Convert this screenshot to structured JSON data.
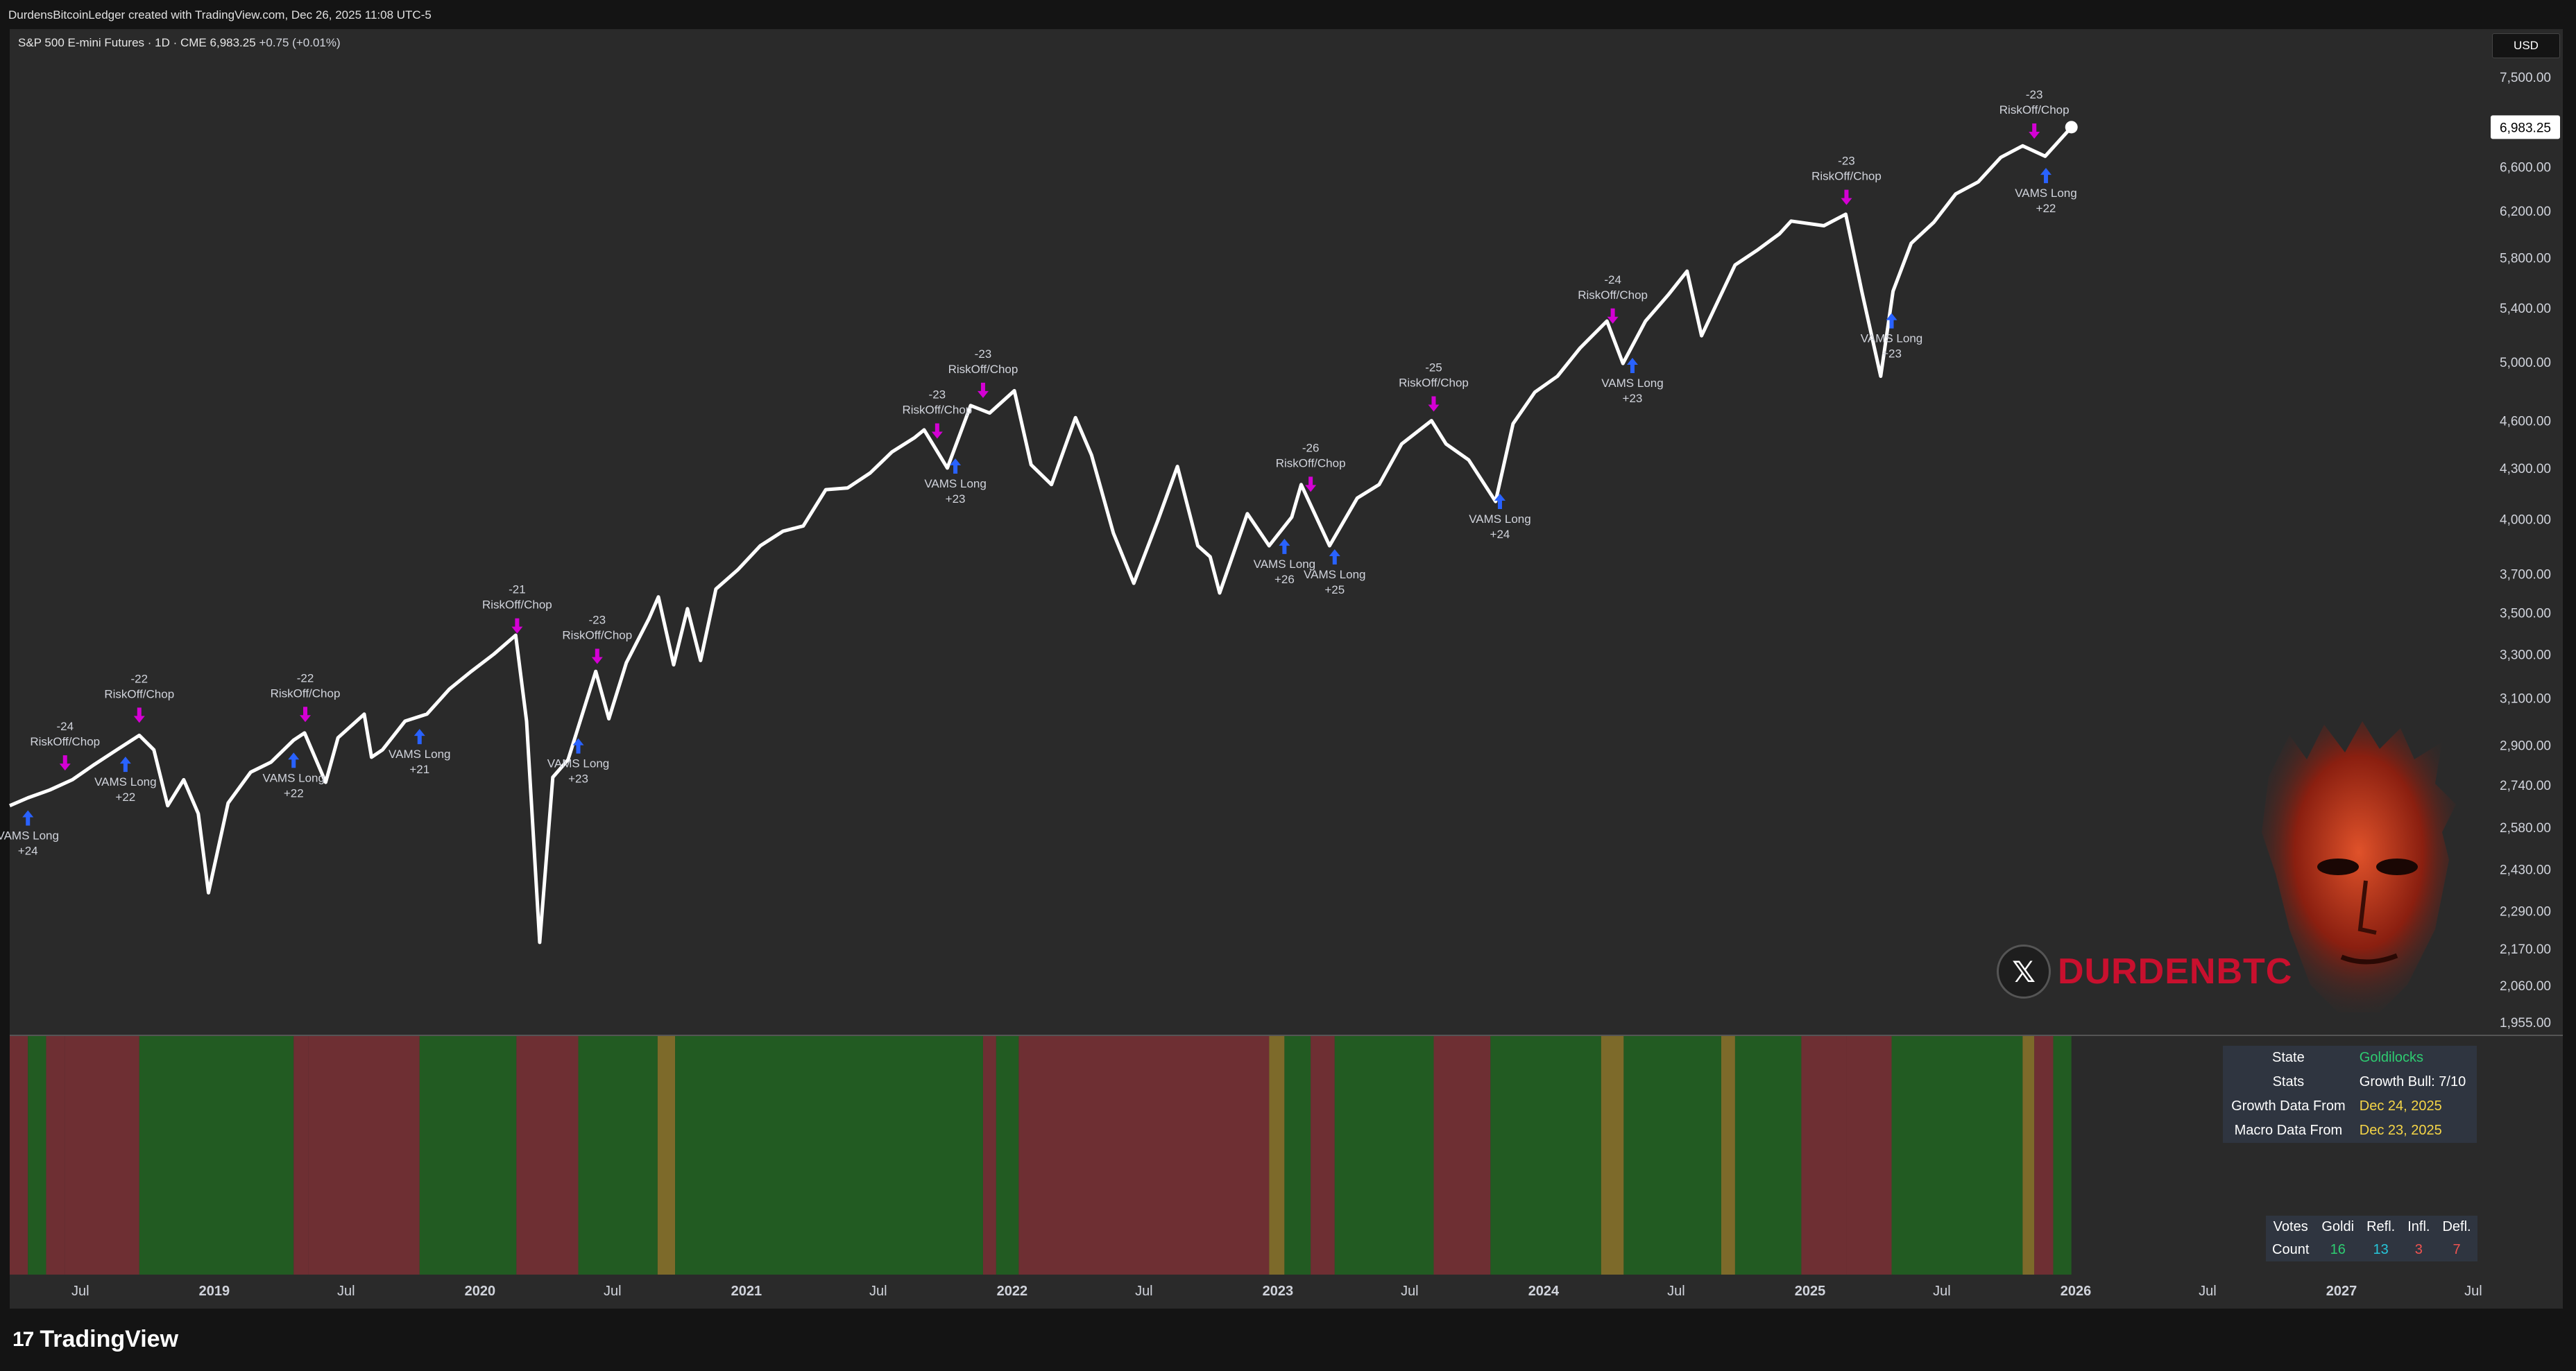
{
  "topbar": {
    "text": "DurdensBitcoinLedger created with TradingView.com, Dec 26, 2025 11:08 UTC-5"
  },
  "legend": {
    "symbol": "S&P 500 E-mini Futures · 1D · CME",
    "price": "6,983.25",
    "change": "+0.75 (+0.01%)"
  },
  "currency": "USD",
  "last_price_label": "6,983.25",
  "brand": {
    "x_icon": "x-logo-icon",
    "name": "DURDENBTC"
  },
  "footer": {
    "logo_mark": "17",
    "logo_text": "TradingView"
  },
  "info_table": {
    "rows": [
      {
        "key": "State",
        "value": "Goldilocks",
        "color": "#2ecc71"
      },
      {
        "key": "Stats",
        "value": "Growth Bull: 7/10",
        "color": "#ffffff"
      },
      {
        "key": "Growth Data From",
        "value": "Dec 24, 2025",
        "color": "#f5d547"
      },
      {
        "key": "Macro Data From",
        "value": "Dec 23, 2025",
        "color": "#f5d547"
      }
    ]
  },
  "votes_table": {
    "headers": [
      "Votes",
      "Goldi",
      "Refl.",
      "Infl.",
      "Defl."
    ],
    "row_label": "Count",
    "values": [
      "16",
      "13",
      "3",
      "7"
    ],
    "colors": [
      "#2ecc71",
      "#26c6da",
      "#ef5350",
      "#ef5350"
    ]
  },
  "chart_data": {
    "type": "line",
    "title": "S&P 500 E-mini Futures · 1D · CME",
    "y_scale": "log",
    "ylim": [
      1900,
      7700
    ],
    "y_ticks": [
      "7,500.00",
      "6,600.00",
      "6,200.00",
      "5,800.00",
      "5,400.00",
      "5,000.00",
      "4,600.00",
      "4,300.00",
      "4,000.00",
      "3,700.00",
      "3,500.00",
      "3,300.00",
      "3,100.00",
      "2,900.00",
      "2,740.00",
      "2,580.00",
      "2,430.00",
      "2,290.00",
      "2,170.00",
      "2,060.00",
      "1,955.00"
    ],
    "x_ticks": [
      "Jul",
      "2019",
      "Jul",
      "2020",
      "Jul",
      "2021",
      "Jul",
      "2022",
      "Jul",
      "2023",
      "Jul",
      "2024",
      "Jul",
      "2025",
      "Jul",
      "2026",
      "Jul",
      "2027",
      "Jul"
    ],
    "series": [
      {
        "x": [
          "2018-03-26",
          "2018-04-20",
          "2018-05-20",
          "2018-06-20",
          "2018-07-20",
          "2018-08-20",
          "2018-09-20",
          "2018-10-10",
          "2018-10-29",
          "2018-11-20",
          "2018-12-10",
          "2018-12-24",
          "2019-01-20",
          "2019-02-20",
          "2019-03-20",
          "2019-04-20",
          "2019-05-05",
          "2019-06-03",
          "2019-06-20",
          "2019-07-26",
          "2019-08-05",
          "2019-08-20",
          "2019-09-20",
          "2019-10-20",
          "2019-11-20",
          "2019-12-20",
          "2020-01-20",
          "2020-02-19",
          "2020-03-05",
          "2020-03-23",
          "2020-04-10",
          "2020-05-01",
          "2020-06-08",
          "2020-06-26",
          "2020-07-20",
          "2020-08-20",
          "2020-09-02",
          "2020-09-23",
          "2020-10-12",
          "2020-10-30",
          "2020-11-20",
          "2020-12-20",
          "2021-01-20",
          "2021-02-20",
          "2021-03-20",
          "2021-04-20",
          "2021-05-20",
          "2021-06-20",
          "2021-07-20",
          "2021-08-20",
          "2021-09-02",
          "2021-10-04",
          "2021-11-05",
          "2021-12-01",
          "2022-01-04",
          "2022-01-27",
          "2022-02-24",
          "2022-03-29",
          "2022-04-20",
          "2022-05-20",
          "2022-06-17",
          "2022-07-20",
          "2022-08-16",
          "2022-09-13",
          "2022-09-30",
          "2022-10-13",
          "2022-11-20",
          "2022-12-20",
          "2023-01-20",
          "2023-02-02",
          "2023-03-13",
          "2023-04-20",
          "2023-05-20",
          "2023-06-20",
          "2023-07-31",
          "2023-08-20",
          "2023-09-20",
          "2023-10-27",
          "2023-11-20",
          "2023-12-20",
          "2024-01-20",
          "2024-02-20",
          "2024-03-28",
          "2024-04-19",
          "2024-05-20",
          "2024-06-20",
          "2024-07-16",
          "2024-08-05",
          "2024-09-20",
          "2024-10-20",
          "2024-11-20",
          "2024-12-06",
          "2025-01-20",
          "2025-02-19",
          "2025-03-13",
          "2025-04-08",
          "2025-04-25",
          "2025-05-20",
          "2025-06-20",
          "2025-07-20",
          "2025-08-20",
          "2025-09-20",
          "2025-10-20",
          "2025-11-20",
          "2025-12-26"
        ],
        "y": [
          2660,
          2690,
          2720,
          2760,
          2820,
          2880,
          2940,
          2880,
          2660,
          2760,
          2630,
          2350,
          2670,
          2790,
          2830,
          2920,
          2950,
          2750,
          2930,
          3030,
          2850,
          2880,
          3000,
          3030,
          3140,
          3220,
          3300,
          3390,
          3000,
          2190,
          2770,
          2840,
          3220,
          3010,
          3260,
          3470,
          3580,
          3250,
          3520,
          3270,
          3620,
          3720,
          3850,
          3930,
          3960,
          4170,
          4180,
          4270,
          4400,
          4490,
          4540,
          4300,
          4700,
          4650,
          4800,
          4320,
          4200,
          4620,
          4380,
          3920,
          3650,
          3990,
          4310,
          3850,
          3790,
          3600,
          4030,
          3850,
          4010,
          4200,
          3850,
          4120,
          4200,
          4450,
          4600,
          4450,
          4350,
          4100,
          4580,
          4790,
          4900,
          5100,
          5300,
          4990,
          5300,
          5500,
          5690,
          5190,
          5740,
          5860,
          6000,
          6110,
          6070,
          6170,
          5530,
          4900,
          5530,
          5920,
          6100,
          6350,
          6460,
          6690,
          6800,
          6700,
          6983.25
        ]
      }
    ],
    "signals": [
      {
        "type": "riskoff",
        "label": "RiskOff/Chop",
        "score": "-23",
        "date": "2025-11-05"
      },
      {
        "type": "vams",
        "label": "VAMS Long",
        "score": "+22",
        "date": "2025-11-21"
      },
      {
        "type": "riskoff",
        "label": "RiskOff/Chop",
        "score": "-23",
        "date": "2025-02-20"
      },
      {
        "type": "vams",
        "label": "VAMS Long",
        "score": "+23",
        "date": "2025-04-23"
      },
      {
        "type": "riskoff",
        "label": "RiskOff/Chop",
        "score": "-24",
        "date": "2024-04-05"
      },
      {
        "type": "vams",
        "label": "VAMS Long",
        "score": "+23",
        "date": "2024-05-02"
      },
      {
        "type": "riskoff",
        "label": "RiskOff/Chop",
        "score": "-25",
        "date": "2023-08-03"
      },
      {
        "type": "vams",
        "label": "VAMS Long",
        "score": "+24",
        "date": "2023-11-02"
      },
      {
        "type": "riskoff",
        "label": "RiskOff/Chop",
        "score": "-26",
        "date": "2023-02-15"
      },
      {
        "type": "vams",
        "label": "VAMS Long",
        "score": "+25",
        "date": "2023-03-20"
      },
      {
        "type": "vams",
        "label": "VAMS Long",
        "score": "+26",
        "date": "2023-01-10"
      },
      {
        "type": "riskoff",
        "label": "RiskOff/Chop",
        "score": "-23",
        "date": "2021-11-22"
      },
      {
        "type": "riskoff",
        "label": "RiskOff/Chop",
        "score": "-23",
        "date": "2021-09-20"
      },
      {
        "type": "vams",
        "label": "VAMS Long",
        "score": "+23",
        "date": "2021-10-15"
      },
      {
        "type": "riskoff",
        "label": "RiskOff/Chop",
        "score": "-21",
        "date": "2020-02-21"
      },
      {
        "type": "riskoff",
        "label": "RiskOff/Chop",
        "score": "-23",
        "date": "2020-06-10"
      },
      {
        "type": "vams",
        "label": "VAMS Long",
        "score": "+23",
        "date": "2020-05-15"
      },
      {
        "type": "vams",
        "label": "VAMS Long",
        "score": "+21",
        "date": "2019-10-10"
      },
      {
        "type": "riskoff",
        "label": "RiskOff/Chop",
        "score": "-22",
        "date": "2019-05-06"
      },
      {
        "type": "vams",
        "label": "VAMS Long",
        "score": "+22",
        "date": "2019-04-20"
      },
      {
        "type": "riskoff",
        "label": "RiskOff/Chop",
        "score": "-22",
        "date": "2018-09-20"
      },
      {
        "type": "vams",
        "label": "VAMS Long",
        "score": "+22",
        "date": "2018-09-01"
      },
      {
        "type": "riskoff",
        "label": "RiskOff/Chop",
        "score": "-24",
        "date": "2018-06-10"
      },
      {
        "type": "vams",
        "label": "VAMS Long",
        "score": "+24",
        "date": "2018-04-20"
      }
    ],
    "regime_bands": [
      {
        "start": "2018-03-26",
        "end": "2018-04-20",
        "state": "defl"
      },
      {
        "start": "2018-04-20",
        "end": "2018-05-15",
        "state": "goldi"
      },
      {
        "start": "2018-05-15",
        "end": "2018-06-10",
        "state": "defl"
      },
      {
        "start": "2018-06-10",
        "end": "2018-09-20",
        "state": "defl"
      },
      {
        "start": "2018-09-20",
        "end": "2019-04-20",
        "state": "goldi"
      },
      {
        "start": "2019-04-20",
        "end": "2019-05-10",
        "state": "defl"
      },
      {
        "start": "2019-05-10",
        "end": "2019-10-10",
        "state": "defl"
      },
      {
        "start": "2019-10-10",
        "end": "2020-02-20",
        "state": "goldi"
      },
      {
        "start": "2020-02-20",
        "end": "2020-05-15",
        "state": "defl"
      },
      {
        "start": "2020-05-15",
        "end": "2020-09-01",
        "state": "goldi"
      },
      {
        "start": "2020-09-01",
        "end": "2020-09-25",
        "state": "infl"
      },
      {
        "start": "2020-09-25",
        "end": "2021-11-22",
        "state": "goldi"
      },
      {
        "start": "2021-11-22",
        "end": "2021-12-10",
        "state": "defl"
      },
      {
        "start": "2021-12-10",
        "end": "2022-01-10",
        "state": "goldi"
      },
      {
        "start": "2022-01-10",
        "end": "2022-12-20",
        "state": "defl"
      },
      {
        "start": "2022-12-20",
        "end": "2023-01-10",
        "state": "infl"
      },
      {
        "start": "2023-01-10",
        "end": "2023-02-15",
        "state": "goldi"
      },
      {
        "start": "2023-02-15",
        "end": "2023-03-20",
        "state": "defl"
      },
      {
        "start": "2023-03-20",
        "end": "2023-08-03",
        "state": "goldi"
      },
      {
        "start": "2023-08-03",
        "end": "2023-10-20",
        "state": "defl"
      },
      {
        "start": "2023-10-20",
        "end": "2024-03-20",
        "state": "goldi"
      },
      {
        "start": "2024-03-20",
        "end": "2024-04-20",
        "state": "infl"
      },
      {
        "start": "2024-04-20",
        "end": "2024-09-01",
        "state": "goldi"
      },
      {
        "start": "2024-09-01",
        "end": "2024-09-20",
        "state": "infl"
      },
      {
        "start": "2024-09-20",
        "end": "2024-12-20",
        "state": "goldi"
      },
      {
        "start": "2024-12-20",
        "end": "2025-02-20",
        "state": "defl"
      },
      {
        "start": "2025-02-20",
        "end": "2025-04-23",
        "state": "defl"
      },
      {
        "start": "2025-04-23",
        "end": "2025-10-20",
        "state": "goldi"
      },
      {
        "start": "2025-10-20",
        "end": "2025-11-05",
        "state": "infl"
      },
      {
        "start": "2025-11-05",
        "end": "2025-12-01",
        "state": "defl"
      },
      {
        "start": "2025-12-01",
        "end": "2025-12-26",
        "state": "goldi"
      }
    ],
    "colors": {
      "line": "#ffffff",
      "riskoff": "#d400d4",
      "vams": "#2962ff",
      "goldi": "#225b22",
      "defl": "#6e2f33",
      "infl": "#7d6a2a"
    },
    "grid": false
  }
}
